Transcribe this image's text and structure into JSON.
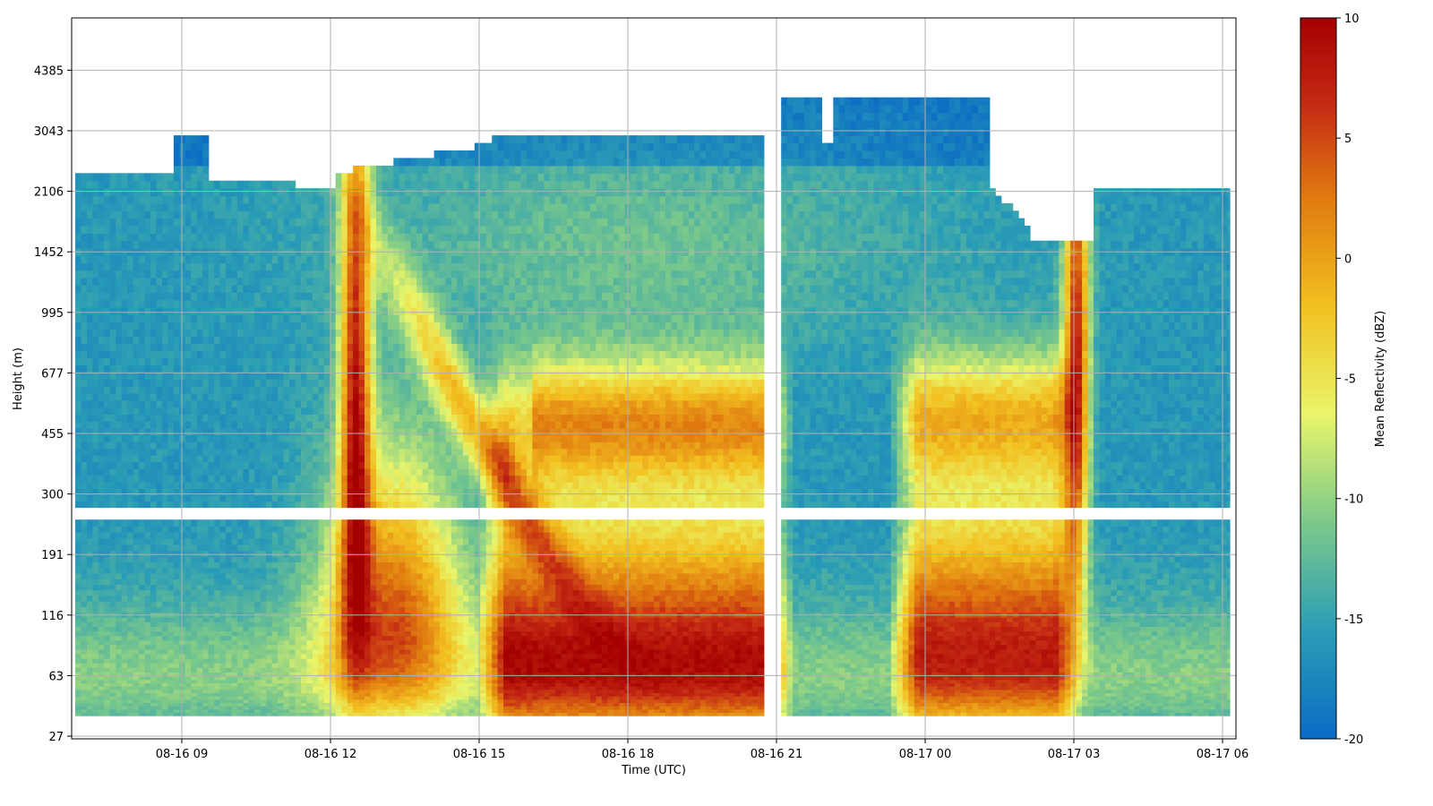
{
  "chart_data": {
    "type": "heatmap",
    "title": "",
    "xlabel": "Time (UTC)",
    "ylabel": "Height (m)",
    "colorbar_label": "Mean Reflectivity (dBZ)",
    "x_ticks": [
      "08-16 09",
      "08-16 12",
      "08-16 15",
      "08-16 18",
      "08-16 21",
      "08-17 00",
      "08-17 03",
      "08-17 06"
    ],
    "y_ticks": [
      27,
      63,
      116,
      191,
      300,
      455,
      677,
      995,
      1452,
      2106,
      3043,
      4385
    ],
    "colorbar_ticks": [
      -20,
      -15,
      -10,
      -5,
      0,
      5,
      10
    ],
    "xlim": [
      "08-16 06:49",
      "08-17 06:15"
    ],
    "ylim_scale": "custom (roughly log-like height gates)",
    "color_range": [
      -20,
      10
    ],
    "colormap": [
      "#0a6cc4",
      "#2a9db6",
      "#7cc98a",
      "#e9f56a",
      "#f2c020",
      "#e07a10",
      "#c42a14",
      "#a50000"
    ],
    "grid": true,
    "legend": "colorbar right",
    "gaps": [
      {
        "description": "no data band",
        "height_m": [
          246,
          266
        ]
      },
      {
        "description": "missing column",
        "time": "08-16 20:40"
      },
      {
        "description": "missing column",
        "time": "08-16 21:50",
        "height_m": [
          2800,
          3700
        ]
      }
    ],
    "features": [
      {
        "type": "reflectivity_max",
        "time": "08-16 12:30",
        "height_m": 780,
        "dbz": 8
      },
      {
        "type": "reflectivity_max",
        "time": "08-16 18:00",
        "height_m": 40,
        "dbz": 8
      },
      {
        "type": "reflectivity_max",
        "time": "08-17 03:00",
        "height_m": 780,
        "dbz": 7
      },
      {
        "type": "cloud_top",
        "time_range": [
          "08-16 21:00",
          "08-17 00:30"
        ],
        "height_m": 3500,
        "dbz": -18
      }
    ]
  }
}
